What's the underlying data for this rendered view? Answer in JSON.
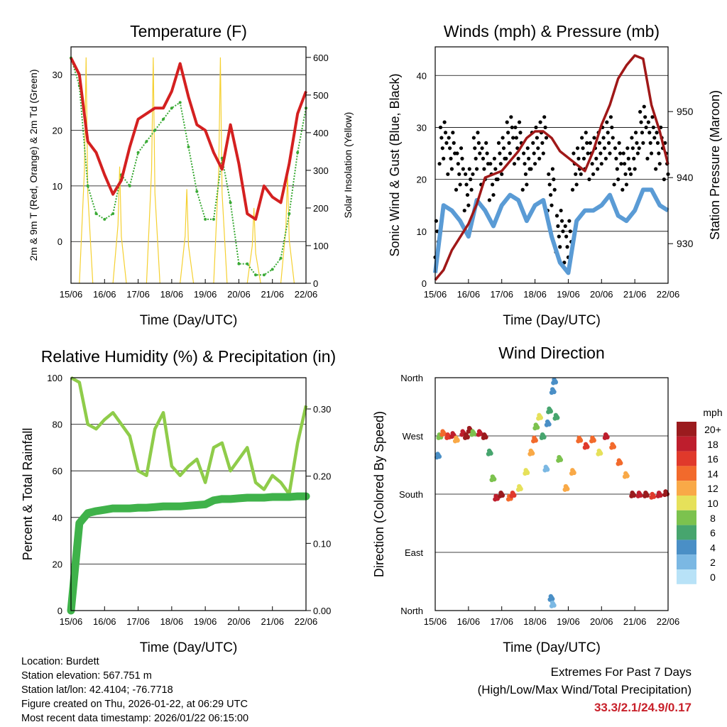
{
  "x_ticks": [
    "15/06",
    "16/06",
    "17/06",
    "18/06",
    "19/06",
    "20/06",
    "21/06",
    "22/06"
  ],
  "chart_data": [
    {
      "type": "line",
      "title": "Temperature (F)",
      "xlabel": "Time (Day/UTC)",
      "ylabel": "2m & 9m T (Red, Orange) & 2m Td (Green)",
      "y2label": "Solar Insolation (Yellow)",
      "ylim": [
        -7.5,
        35
      ],
      "y2lim": [
        0,
        628
      ],
      "yticks": [
        0,
        10,
        20,
        30
      ],
      "y2ticks": [
        0,
        100,
        200,
        300,
        400,
        500,
        600
      ],
      "x_days": [
        0,
        0.25,
        0.5,
        0.75,
        1,
        1.25,
        1.5,
        1.75,
        2,
        2.25,
        2.5,
        2.75,
        3,
        3.25,
        3.5,
        3.75,
        4,
        4.25,
        4.5,
        4.75,
        5,
        5.25,
        5.5,
        5.75,
        6,
        6.25,
        6.5,
        6.75,
        7
      ],
      "series": [
        {
          "name": "2m T",
          "color": "#d42020",
          "values": [
            33,
            30,
            18,
            16,
            12,
            8.5,
            11,
            17,
            22,
            23,
            24,
            24,
            27,
            32,
            26,
            21,
            20,
            16,
            13,
            21,
            14,
            5,
            4,
            10,
            8,
            7,
            14,
            23,
            27
          ]
        },
        {
          "name": "2m Td",
          "color": "#3aaa35",
          "values": [
            33,
            28,
            10,
            5,
            4,
            5,
            12,
            10,
            16,
            18,
            20,
            22,
            24,
            25,
            17,
            9,
            4,
            4,
            15,
            7,
            -4,
            -4,
            -6,
            -6,
            -5,
            -3,
            5,
            16,
            24
          ]
        }
      ],
      "solar": {
        "name": "Solar Insolation",
        "color": "#f5d030",
        "peak_days": [
          0.45,
          1.45,
          2.45,
          3.45,
          4.45,
          5.45,
          6.45
        ],
        "peaks": [
          600,
          310,
          600,
          250,
          600,
          200,
          290
        ]
      }
    },
    {
      "type": "line",
      "title": "Winds (mph) & Pressure (mb)",
      "xlabel": "Time (Day/UTC)",
      "ylabel": "Sonic Wind & Gust (Blue, Black)",
      "y2label": "Station Pressure (Maroon)",
      "ylim": [
        0,
        45.5
      ],
      "y2lim": [
        924,
        959.8
      ],
      "yticks": [
        0,
        10,
        20,
        30,
        40
      ],
      "y2ticks": [
        930,
        940,
        950
      ],
      "x_days": [
        0,
        0.25,
        0.5,
        0.75,
        1,
        1.25,
        1.5,
        1.75,
        2,
        2.25,
        2.5,
        2.75,
        3,
        3.25,
        3.5,
        3.75,
        4,
        4.25,
        4.5,
        4.75,
        5,
        5.25,
        5.5,
        5.75,
        6,
        6.25,
        6.5,
        6.75,
        7
      ],
      "series": [
        {
          "name": "Gust",
          "color": "#000000",
          "values": [
            8,
            27,
            25,
            22,
            18,
            25,
            23,
            20,
            24,
            28,
            27,
            22,
            26,
            28,
            18,
            10,
            8,
            22,
            25,
            24,
            26,
            28,
            23,
            22,
            25,
            30,
            28,
            26,
            24
          ]
        },
        {
          "name": "Wind",
          "color": "#5a9bd5",
          "values": [
            2,
            15,
            14,
            12,
            9,
            16,
            14,
            11,
            15,
            17,
            16,
            12,
            15,
            16,
            9,
            4,
            2,
            12,
            14,
            14,
            15,
            17,
            13,
            12,
            14,
            18,
            18,
            15,
            14
          ]
        },
        {
          "name": "Pressure",
          "color": "#a01818",
          "values": [
            924.5,
            926,
            929,
            931,
            933,
            936,
            940,
            940.5,
            941,
            942.5,
            944,
            946,
            947,
            947,
            946,
            944,
            943,
            942,
            941,
            944,
            948,
            951,
            955,
            957,
            958.5,
            958,
            951,
            947,
            942
          ]
        }
      ]
    },
    {
      "type": "line",
      "title": "Relative Humidity (%) & Precipitation (in)",
      "xlabel": "Time (Day/UTC)",
      "ylabel": "Percent & Total Rainfall",
      "ylim": [
        0,
        100
      ],
      "y2lim": [
        0,
        0.3465
      ],
      "yticks": [
        0,
        20,
        40,
        60,
        80,
        100
      ],
      "y2ticks": [
        "0.00",
        "0.10",
        "0.20",
        "0.30"
      ],
      "x_days": [
        0,
        0.25,
        0.5,
        0.75,
        1,
        1.25,
        1.5,
        1.75,
        2,
        2.25,
        2.5,
        2.75,
        3,
        3.25,
        3.5,
        3.75,
        4,
        4.25,
        4.5,
        4.75,
        5,
        5.25,
        5.5,
        5.75,
        6,
        6.25,
        6.5,
        6.75,
        7
      ],
      "series": [
        {
          "name": "RH",
          "color": "#8fcc4a",
          "values": [
            100,
            98,
            80,
            78,
            82,
            85,
            80,
            75,
            60,
            58,
            78,
            85,
            62,
            58,
            62,
            65,
            55,
            70,
            72,
            60,
            65,
            70,
            55,
            52,
            58,
            55,
            50,
            72,
            88
          ]
        },
        {
          "name": "Total Precipitation",
          "color": "#3fb24a",
          "values": [
            0,
            0.13,
            0.145,
            0.148,
            0.15,
            0.152,
            0.152,
            0.152,
            0.153,
            0.153,
            0.154,
            0.155,
            0.155,
            0.155,
            0.156,
            0.157,
            0.158,
            0.164,
            0.166,
            0.166,
            0.167,
            0.168,
            0.168,
            0.168,
            0.169,
            0.169,
            0.169,
            0.17,
            0.17
          ]
        }
      ]
    },
    {
      "type": "scatter",
      "title": "Wind Direction",
      "xlabel": "Time (Day/UTC)",
      "ylabel": "Direction (Colored By Speed)",
      "ylim": [
        0,
        360
      ],
      "yticks": [
        {
          "v": 0,
          "label": "North"
        },
        {
          "v": 90,
          "label": "East"
        },
        {
          "v": 180,
          "label": "South"
        },
        {
          "v": 270,
          "label": "West"
        },
        {
          "v": 360,
          "label": "North"
        }
      ],
      "legend": {
        "title": "mph",
        "labels": [
          "20+",
          "18",
          "16",
          "14",
          "12",
          "10",
          "8",
          "6",
          "4",
          "2",
          "0"
        ],
        "colors": [
          "#9b1b1e",
          "#be1e2d",
          "#e0392b",
          "#f26a2c",
          "#f9a947",
          "#e6e15a",
          "#7cc24e",
          "#47a56e",
          "#4a8fc6",
          "#7bb8e3",
          "#b8e2f7"
        ],
        "placement": "right"
      },
      "points": [
        [
          0.05,
          240,
          4
        ],
        [
          0.1,
          270,
          8
        ],
        [
          0.2,
          275,
          14
        ],
        [
          0.35,
          270,
          16
        ],
        [
          0.5,
          272,
          18
        ],
        [
          0.6,
          265,
          12
        ],
        [
          0.8,
          275,
          18
        ],
        [
          0.9,
          270,
          20
        ],
        [
          1.0,
          280,
          20
        ],
        [
          1.1,
          275,
          8
        ],
        [
          1.3,
          275,
          18
        ],
        [
          1.45,
          270,
          20
        ],
        [
          1.6,
          245,
          6
        ],
        [
          1.7,
          205,
          8
        ],
        [
          1.8,
          175,
          18
        ],
        [
          1.95,
          180,
          20
        ],
        [
          2.2,
          175,
          14
        ],
        [
          2.3,
          180,
          16
        ],
        [
          2.5,
          190,
          10
        ],
        [
          2.7,
          215,
          10
        ],
        [
          2.85,
          245,
          12
        ],
        [
          2.95,
          265,
          14
        ],
        [
          3.0,
          285,
          8
        ],
        [
          3.1,
          300,
          10
        ],
        [
          3.2,
          270,
          6
        ],
        [
          3.35,
          290,
          4
        ],
        [
          3.4,
          310,
          6
        ],
        [
          3.5,
          340,
          4
        ],
        [
          3.55,
          355,
          4
        ],
        [
          3.6,
          300,
          6
        ],
        [
          3.45,
          20,
          4
        ],
        [
          3.5,
          10,
          2
        ],
        [
          3.7,
          235,
          8
        ],
        [
          3.9,
          190,
          12
        ],
        [
          4.1,
          215,
          12
        ],
        [
          4.3,
          265,
          14
        ],
        [
          4.5,
          255,
          16
        ],
        [
          4.7,
          265,
          14
        ],
        [
          4.9,
          245,
          10
        ],
        [
          5.1,
          270,
          18
        ],
        [
          5.3,
          255,
          14
        ],
        [
          5.5,
          230,
          14
        ],
        [
          5.7,
          210,
          12
        ],
        [
          5.9,
          180,
          20
        ],
        [
          6.1,
          180,
          18
        ],
        [
          6.3,
          180,
          20
        ],
        [
          6.5,
          178,
          16
        ],
        [
          6.7,
          180,
          18
        ],
        [
          6.9,
          182,
          20
        ],
        [
          3.3,
          220,
          2
        ]
      ]
    }
  ],
  "footer": {
    "location": "Location: Burdett",
    "elevation": "Station elevation: 567.751 m",
    "latlon": "Station lat/lon: 42.4104; -76.7718",
    "created": "Figure created on Thu, 2026-01-22, at 06:29 UTC",
    "recent": "Most recent data timestamp: 2026/01/22 06:15:00"
  },
  "extremes": {
    "title": "Extremes For Past 7 Days",
    "subtitle": "(High/Low/Max Wind/Total Precipitation)",
    "values": "33.3/2.1/24.9/0.17"
  }
}
